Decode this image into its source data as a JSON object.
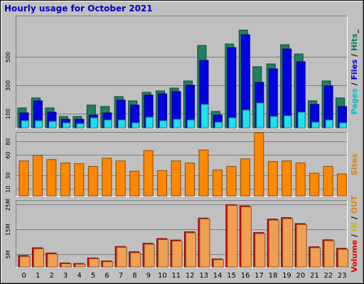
{
  "chart_data": {
    "title": "Hourly usage for October 2021",
    "type": "bar",
    "hours": [
      "0",
      "1",
      "2",
      "3",
      "4",
      "5",
      "6",
      "7",
      "8",
      "9",
      "10",
      "11",
      "12",
      "13",
      "14",
      "15",
      "16",
      "17",
      "18",
      "19",
      "20",
      "21",
      "22",
      "23"
    ],
    "panels": [
      {
        "id": "requests",
        "type": "bar",
        "y_ticks": [
          "100",
          "300",
          "500"
        ],
        "y_tick_values": [
          100,
          300,
          500
        ],
        "ylim": [
          0,
          785
        ],
        "legend": [
          {
            "text": "Pages",
            "color": "#00c0d0"
          },
          {
            "text": " / ",
            "color": "#000000"
          },
          {
            "text": "Files",
            "color": "#0000e0"
          },
          {
            "text": " / ",
            "color": "#000000"
          },
          {
            "text": "Hits",
            "color": "#008060"
          },
          {
            "text": "_",
            "color": "#000000"
          }
        ],
        "series": [
          {
            "name": "Hits",
            "color": "#208060",
            "values": [
              140,
              210,
              140,
              80,
              80,
              160,
              150,
              220,
              190,
              250,
              260,
              280,
              330,
              580,
              115,
              590,
              688,
              430,
              450,
              585,
              520,
              190,
              330,
              210
            ]
          },
          {
            "name": "Files",
            "color": "#0000e0",
            "values": [
              105,
              190,
              110,
              60,
              60,
              90,
              105,
              195,
              160,
              230,
              240,
              255,
              300,
              475,
              90,
              565,
              655,
              320,
              415,
              555,
              465,
              165,
              295,
              150
            ]
          },
          {
            "name": "Pages",
            "color": "#20e0f0",
            "values": [
              50,
              50,
              45,
              35,
              30,
              70,
              55,
              55,
              35,
              75,
              50,
              60,
              55,
              165,
              40,
              70,
              125,
              175,
              80,
              85,
              110,
              40,
              55,
              35
            ]
          }
        ]
      },
      {
        "id": "sites",
        "type": "bar",
        "y_ticks": [
          "10",
          "30",
          "60",
          "80"
        ],
        "y_tick_values": [
          10,
          30,
          60,
          80
        ],
        "ylim": [
          0,
          92
        ],
        "legend": [
          {
            "text": "Sites",
            "color": "#e08010"
          }
        ],
        "series": [
          {
            "name": "Sites",
            "color": "#ff8800",
            "values": [
              51,
              59,
              53,
              48,
              47,
              43,
              55,
              51,
              36,
              66,
              37,
              51,
              48,
              67,
              38,
              43,
              54,
              92,
              50,
              51,
              48,
              33,
              43,
              32
            ]
          }
        ]
      },
      {
        "id": "volume",
        "type": "bar",
        "y_ticks": [
          "5M",
          "15M",
          "25M"
        ],
        "y_tick_values": [
          5,
          15,
          25
        ],
        "ylim": [
          0,
          26.5
        ],
        "legend": [
          {
            "text": "Volume",
            "color": "#e00000"
          },
          {
            "text": " / ",
            "color": "#000000"
          },
          {
            "text": "IN",
            "color": "#c0c000"
          },
          {
            "text": " / ",
            "color": "#000000"
          },
          {
            "text": "OUT",
            "color": "#e08010"
          }
        ],
        "series": [
          {
            "name": "Volume",
            "color": "#ee0000",
            "values": [
              4.6,
              7.7,
              5.6,
              1.6,
              1.4,
              3.6,
              2.4,
              8.2,
              6.1,
              9.5,
              11.4,
              10.8,
              14.1,
              19.6,
              3.2,
              25.0,
              24.5,
              13.8,
              19.2,
              19.8,
              17.4,
              8.1,
              10.9,
              7.5
            ]
          },
          {
            "name": "OUT",
            "color": "#f0a050",
            "values": [
              4.2,
              7.3,
              5.2,
              1.3,
              1.1,
              3.3,
              2.1,
              7.9,
              5.7,
              9.1,
              11.0,
              10.4,
              13.7,
              19.3,
              2.9,
              24.7,
              24.1,
              13.4,
              18.8,
              19.4,
              17.0,
              7.7,
              10.5,
              7.1
            ]
          }
        ]
      }
    ]
  }
}
